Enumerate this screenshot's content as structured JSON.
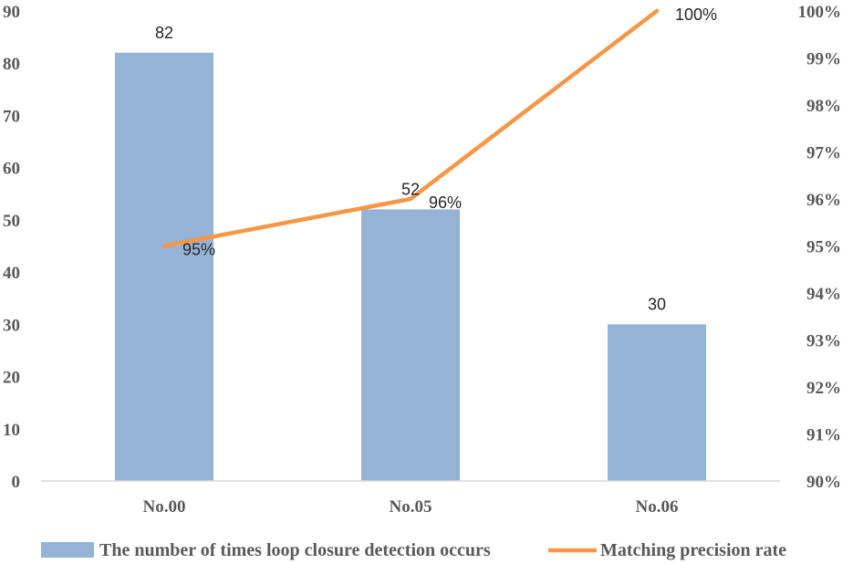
{
  "chart_data": {
    "type": "bar",
    "categories": [
      "No.00",
      "No.05",
      "No.06"
    ],
    "series": [
      {
        "name": "The number of times loop closure detection occurs",
        "type": "bar",
        "axis": "left",
        "values": [
          82,
          52,
          30
        ],
        "labels": [
          "82",
          "52",
          "30"
        ],
        "color": "#95b3d7"
      },
      {
        "name": "Matching precision rate",
        "type": "line",
        "axis": "right",
        "values": [
          0.95,
          0.96,
          1.0
        ],
        "labels": [
          "95%",
          "96%",
          "100%"
        ],
        "color": "#f79646"
      }
    ],
    "y_left": {
      "lim": [
        0,
        90
      ],
      "ticks": [
        "0",
        "10",
        "20",
        "30",
        "40",
        "50",
        "60",
        "70",
        "80",
        "90"
      ]
    },
    "y_right": {
      "lim": [
        0.9,
        1.0
      ],
      "ticks": [
        "90%",
        "91%",
        "92%",
        "93%",
        "94%",
        "95%",
        "96%",
        "97%",
        "98%",
        "99%",
        "100%"
      ]
    },
    "grid": false,
    "legend_position": "bottom"
  }
}
